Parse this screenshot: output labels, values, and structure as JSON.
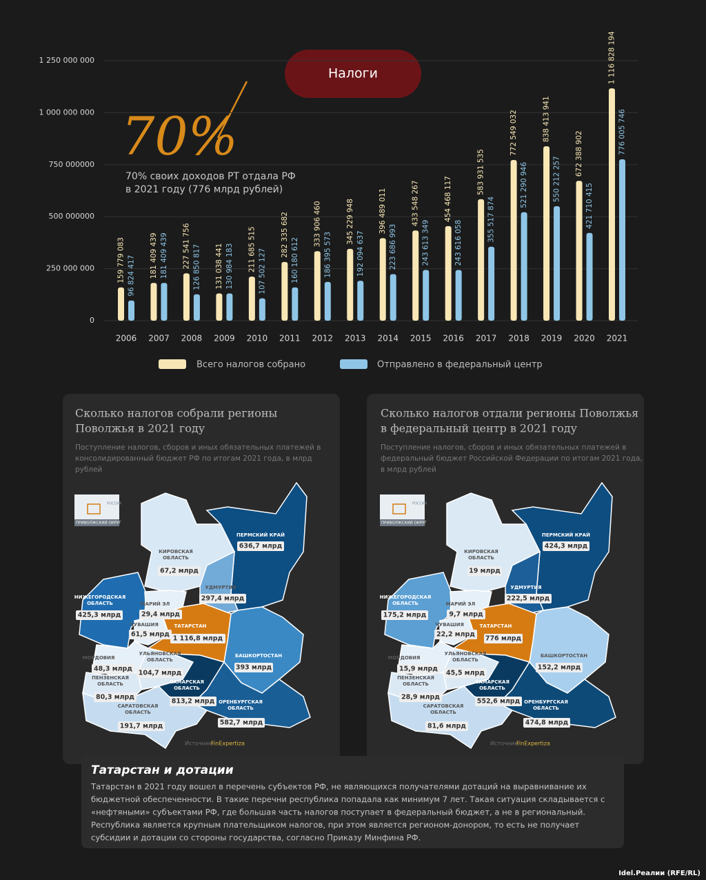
{
  "chart_data": {
    "type": "bar",
    "title": "Налоги",
    "headline": "70%",
    "headline_text": [
      "70% своих доходов РТ отдала РФ",
      "в 2021 году (776 млрд рублей)"
    ],
    "categories": [
      "2006",
      "2007",
      "2008",
      "2009",
      "2010",
      "2011",
      "2012",
      "2013",
      "2014",
      "2015",
      "2016",
      "2017",
      "2018",
      "2019",
      "2020",
      "2021"
    ],
    "series": [
      {
        "name": "Всего налогов собрано",
        "color": "#f8e7b5",
        "values": [
          159779083,
          181409439,
          227541756,
          131038441,
          211685515,
          282335682,
          333906460,
          345229948,
          396489011,
          433548267,
          454468117,
          583931535,
          772549032,
          838413941,
          672388902,
          1116828194
        ],
        "value_labels": [
          "159 779 083",
          "181 409 439",
          "227 541 756",
          "131 038 441",
          "211 685 515",
          "282 335 682",
          "333 906 460",
          "345 229 948",
          "396 489 011",
          "433 548 267",
          "454 468 117",
          "583 931 535",
          "772 549 032",
          "838 413 941",
          "672 388 902",
          "1 116 828 194"
        ]
      },
      {
        "name": "Отправлено в федеральный центр",
        "color": "#8fc6e7",
        "values": [
          96824417,
          181409439,
          126850817,
          130984183,
          107502127,
          160180612,
          186395573,
          192094637,
          223686993,
          243613349,
          243616058,
          355517874,
          521290946,
          550212257,
          421710415,
          776005746
        ],
        "value_labels": [
          "96 824 417",
          "181 409 439",
          "126 850 817",
          "130 984 183",
          "107 502 127",
          "160 180 612",
          "186 395 573",
          "192 094 637",
          "223 686 993",
          "243 613 349",
          "243 616 058",
          "355 517 874",
          "521 290 946",
          "550 212 257",
          "421 710 415",
          "776 005 746"
        ]
      }
    ],
    "ylim": [
      0,
      1250000000
    ],
    "yticks": [
      0,
      {
        "value": 250000000,
        "label": "250 000 000"
      },
      {
        "value": 500000000,
        "label": "500 000000"
      },
      {
        "value": 750000000,
        "label": "750 000000"
      },
      {
        "value": 1000000000,
        "label": "1 000 000 000"
      },
      {
        "value": 1250000000,
        "label": "1 250 000 000"
      }
    ],
    "grid": true
  },
  "maps": [
    {
      "title": [
        "Сколько налогов собрали регионы",
        "Поволжья в 2021 году"
      ],
      "subtitle": [
        "Поступление налогов, сборов и иных обязательных платежей в",
        "консолидированный бюджет РФ по итогам 2021 года, в млрд",
        "рублей"
      ],
      "inset_country": "РОССИЯ",
      "inset_district": "ПРИВОЛЖСКИЙ ОКРУГ",
      "source_label": "Источник:",
      "source_name": "FinExpertiza",
      "regions": [
        {
          "name": [
            "ПЕРМСКИЙ КРАЙ"
          ],
          "value": "636,7 млрд",
          "fill": "#0d4e83"
        },
        {
          "name": [
            "КИРОВСКАЯ",
            "ОБЛАСТЬ"
          ],
          "value": "67,2 млрд",
          "fill": "#d9e8f5"
        },
        {
          "name": [
            "УДМУРТИЯ"
          ],
          "value": "297,4 млрд",
          "fill": "#72aad8"
        },
        {
          "name": [
            "НИЖЕГОРОДСКАЯ",
            "ОБЛАСТЬ"
          ],
          "value": "425,3 млрд",
          "fill": "#1f6db0"
        },
        {
          "name": [
            "МАРИЙ ЭЛ"
          ],
          "value": "29,4 млрд",
          "fill": "#e6f0f9"
        },
        {
          "name": [
            "ЧУВАШИЯ"
          ],
          "value": "61,5 млрд",
          "fill": "#e6f0f9"
        },
        {
          "name": [
            "ТАТАРСТАН"
          ],
          "value": "1 116,8 млрд",
          "fill": "#d67b12"
        },
        {
          "name": [
            "БАШКОРТОСТАН"
          ],
          "value": "393 млрд",
          "fill": "#3a89c5"
        },
        {
          "name": [
            "МОРДОВИЯ"
          ],
          "value": "48,3 млрд",
          "fill": "#e6f0f9"
        },
        {
          "name": [
            "УЛЬЯНОВСКАЯ",
            "ОБЛАСТЬ"
          ],
          "value": "104,7 млрд",
          "fill": "#dbe9f5"
        },
        {
          "name": [
            "САМАРСКАЯ",
            "ОБЛАСТЬ"
          ],
          "value": "813,2 млрд",
          "fill": "#0a3a5f"
        },
        {
          "name": [
            "ПЕНЗЕНСКАЯ",
            "ОБЛАСТЬ"
          ],
          "value": "80,3 млрд",
          "fill": "#dbe9f5"
        },
        {
          "name": [
            "ОРЕНБУРГСКАЯ",
            "ОБЛАСТЬ"
          ],
          "value": "582,7 млрд",
          "fill": "#1a5e96"
        },
        {
          "name": [
            "САРАТОВСКАЯ",
            "ОБЛАСТЬ"
          ],
          "value": "191,7 млрд",
          "fill": "#c5dcf0"
        }
      ]
    },
    {
      "title": [
        "Сколько налогов отдали регионы Поволжья",
        "в федеральный центр в 2021 году"
      ],
      "subtitle": [
        "Поступление налогов, сборов и иных обязательных платежей в",
        "федеральный бюджет Российской Федерации по итогам 2021 года,",
        "в млрд рублей"
      ],
      "inset_country": "РОССИЯ",
      "inset_district": "ПРИВОЛЖСКИЙ ОКРУГ",
      "source_label": "Источник:",
      "source_name": "FinExpertiza",
      "regions": [
        {
          "name": [
            "ПЕРМСКИЙ КРАЙ"
          ],
          "value": "424,3 млрд",
          "fill": "#0e4d80"
        },
        {
          "name": [
            "КИРОВСКАЯ",
            "ОБЛАСТЬ"
          ],
          "value": "19 млрд",
          "fill": "#dbe9f5"
        },
        {
          "name": [
            "УДМУРТИЯ"
          ],
          "value": "222,5 млрд",
          "fill": "#1c5f99"
        },
        {
          "name": [
            "НИЖЕГОРОДСКАЯ",
            "ОБЛАСТЬ"
          ],
          "value": "175,2 млрд",
          "fill": "#5b9fd3"
        },
        {
          "name": [
            "МАРИЙ ЭЛ"
          ],
          "value": "9,7 млрд",
          "fill": "#e6f0f9"
        },
        {
          "name": [
            "ЧУВАШИЯ"
          ],
          "value": "22,2 млрд",
          "fill": "#e6f0f9"
        },
        {
          "name": [
            "ТАТАРСТАН"
          ],
          "value": "776 млрд",
          "fill": "#d67b12"
        },
        {
          "name": [
            "БАШКОРТОСТАН"
          ],
          "value": "152,2 млрд",
          "fill": "#a9cfee"
        },
        {
          "name": [
            "МОРДОВИЯ"
          ],
          "value": "15,9 млрд",
          "fill": "#e6f0f9"
        },
        {
          "name": [
            "УЛЬЯНОВСКАЯ",
            "ОБЛАСТЬ"
          ],
          "value": "45,5 млрд",
          "fill": "#dbe9f5"
        },
        {
          "name": [
            "САМАРСКАЯ",
            "ОБЛАСТЬ"
          ],
          "value": "552,6 млрд",
          "fill": "#0a3a5f"
        },
        {
          "name": [
            "ПЕНЗЕНСКАЯ",
            "ОБЛАСТЬ"
          ],
          "value": "28,9 млрд",
          "fill": "#dbe9f5"
        },
        {
          "name": [
            "ОРЕНБУРГСКАЯ",
            "ОБЛАСТЬ"
          ],
          "value": "474,8 млрд",
          "fill": "#0d4a78"
        },
        {
          "name": [
            "САРАТОВСКАЯ",
            "ОБЛАСТЬ"
          ],
          "value": "81,6 млрд",
          "fill": "#c5dcf0"
        }
      ]
    }
  ],
  "note": {
    "title": "Татарстан и дотации",
    "lines": [
      "Татарстан в 2021 году вошел в перечень субъектов РФ, не являющихся получателями дотаций на выравнивание их",
      "бюджетной обеспеченности. В такие перечни республика попадала как минимум 7 лет. Такая ситуация складывается с",
      "«нефтяными» субъектами РФ, где большая часть налогов поступает в федеральный бюджет, а не в региональный.",
      "Республика является крупным плательщиком налогов, при этом является регионом-донором, то есть не получает",
      "субсидии и дотации со стороны государства, согласно Приказу Минфина РФ."
    ]
  },
  "credit": "Idel.Реалии (RFE/RL)"
}
